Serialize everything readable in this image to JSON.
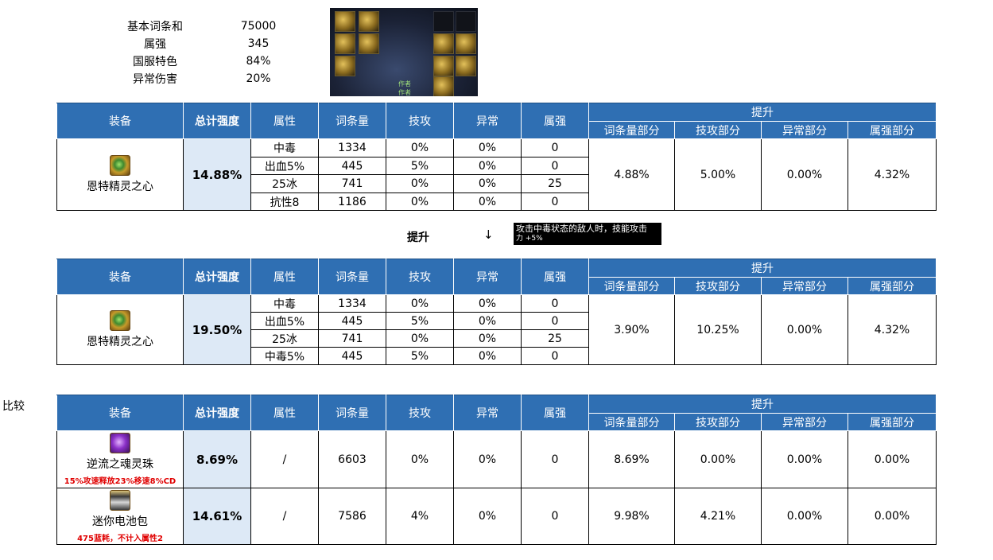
{
  "stats": [
    {
      "label": "基本词条和",
      "value": "75000"
    },
    {
      "label": "属强",
      "value": "345"
    },
    {
      "label": "国服特色",
      "value": "84%"
    },
    {
      "label": "异常伤害",
      "value": "20%"
    }
  ],
  "game_screenshot": {
    "author_text": "作者"
  },
  "headers": {
    "equip": "装备",
    "total": "总计强度",
    "attr": "属性",
    "amount": "词条量",
    "skill": "技攻",
    "abnormal": "异常",
    "elem": "属强",
    "boost": "提升",
    "sub_amount": "词条量部分",
    "sub_skill": "技攻部分",
    "sub_abnormal": "异常部分",
    "sub_elem": "属强部分"
  },
  "table1": {
    "name": "恩特精灵之心",
    "total": "14.88%",
    "rows": [
      {
        "attr": "中毒",
        "amount": "1334",
        "skill": "0%",
        "abnormal": "0%",
        "elem": "0"
      },
      {
        "attr": "出血5%",
        "amount": "445",
        "skill": "5%",
        "abnormal": "0%",
        "elem": "0"
      },
      {
        "attr": "25冰",
        "amount": "741",
        "skill": "0%",
        "abnormal": "0%",
        "elem": "25"
      },
      {
        "attr": "抗性8",
        "amount": "1186",
        "skill": "0%",
        "abnormal": "0%",
        "elem": "0"
      }
    ],
    "boost": {
      "amount": "4.88%",
      "skill": "5.00%",
      "abnormal": "0.00%",
      "elem": "4.32%"
    }
  },
  "middle": {
    "label": "提升",
    "arrow": "↓",
    "tooltip_line1": "攻击中毒状态的敌人时，技能攻击",
    "tooltip_line2": "力 +5%"
  },
  "table2": {
    "name": "恩特精灵之心",
    "total": "19.50%",
    "rows": [
      {
        "attr": "中毒",
        "amount": "1334",
        "skill": "0%",
        "abnormal": "0%",
        "elem": "0"
      },
      {
        "attr": "出血5%",
        "amount": "445",
        "skill": "5%",
        "abnormal": "0%",
        "elem": "0"
      },
      {
        "attr": "25冰",
        "amount": "741",
        "skill": "0%",
        "abnormal": "0%",
        "elem": "25"
      },
      {
        "attr": "中毒5%",
        "amount": "445",
        "skill": "5%",
        "abnormal": "0%",
        "elem": "0"
      }
    ],
    "boost": {
      "amount": "3.90%",
      "skill": "10.25%",
      "abnormal": "0.00%",
      "elem": "4.32%"
    }
  },
  "compare_label": "比较",
  "table3": {
    "rows": [
      {
        "name": "逆流之魂灵珠",
        "note": "15%攻速释放23%移速8%CD",
        "total": "8.69%",
        "attr": "/",
        "amount": "6603",
        "skill": "0%",
        "abnormal": "0%",
        "elem": "0",
        "boost": {
          "amount": "8.69%",
          "skill": "0.00%",
          "abnormal": "0.00%",
          "elem": "0.00%"
        }
      },
      {
        "name": "迷你电池包",
        "note": "475蓝耗，不计入属性2",
        "total": "14.61%",
        "attr": "/",
        "amount": "7586",
        "skill": "4%",
        "abnormal": "0%",
        "elem": "0",
        "boost": {
          "amount": "9.98%",
          "skill": "4.21%",
          "abnormal": "0.00%",
          "elem": "0.00%"
        }
      }
    ]
  },
  "colors": {
    "header_bg": "#2f6fb3",
    "total_bg": "#dde9f6",
    "note_red": "#e00000"
  }
}
